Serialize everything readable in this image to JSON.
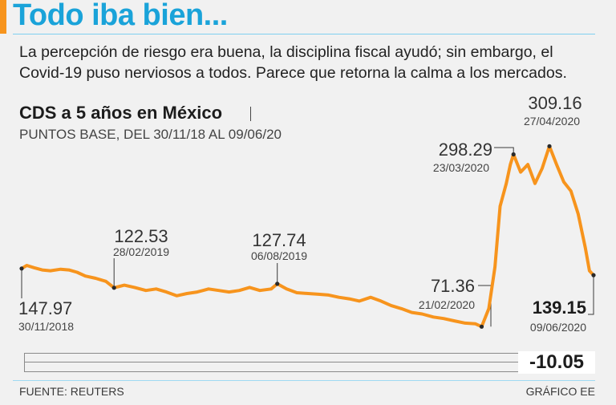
{
  "headline": "Todo iba bien...",
  "subtitle": "La percepción de riesgo era buena, la disciplina fiscal ayudó; sin embargo, el Covid-19 puso nerviosos a todos. Parece que retorna la calma a los mercados.",
  "colors": {
    "accent": "#f7941d",
    "headline": "#1aa3d9",
    "line": "#f7941d",
    "rule": "#7fcff0"
  },
  "change": "-10.05",
  "footer": {
    "source": "FUENTE: REUTERS",
    "credit": "GRÁFICO EE"
  },
  "chart_data": {
    "type": "line",
    "title": "CDS a 5 años en México",
    "subtitle": "PUNTOS BASE, DEL 30/11/18 AL 09/06/20",
    "x_range": [
      "2018-11-30",
      "2020-06-09"
    ],
    "y_range": [
      60,
      320
    ],
    "grid": false,
    "series": [
      {
        "values": [
          [
            "2018-11-30",
            147.97
          ],
          [
            "2018-12-05",
            152
          ],
          [
            "2018-12-12",
            149
          ],
          [
            "2018-12-20",
            146
          ],
          [
            "2018-12-28",
            145
          ],
          [
            "2019-01-07",
            147
          ],
          [
            "2019-01-15",
            146
          ],
          [
            "2019-01-23",
            143
          ],
          [
            "2019-01-31",
            138
          ],
          [
            "2019-02-10",
            135
          ],
          [
            "2019-02-20",
            131
          ],
          [
            "2019-02-28",
            122.53
          ],
          [
            "2019-03-10",
            126
          ],
          [
            "2019-03-20",
            123
          ],
          [
            "2019-03-31",
            119
          ],
          [
            "2019-04-10",
            121
          ],
          [
            "2019-04-20",
            117
          ],
          [
            "2019-04-30",
            112
          ],
          [
            "2019-05-10",
            115
          ],
          [
            "2019-05-20",
            117
          ],
          [
            "2019-05-31",
            121
          ],
          [
            "2019-06-10",
            119
          ],
          [
            "2019-06-20",
            117
          ],
          [
            "2019-06-30",
            119
          ],
          [
            "2019-07-10",
            123
          ],
          [
            "2019-07-20",
            119
          ],
          [
            "2019-07-31",
            121
          ],
          [
            "2019-08-06",
            127.74
          ],
          [
            "2019-08-15",
            121
          ],
          [
            "2019-08-25",
            116
          ],
          [
            "2019-09-05",
            115
          ],
          [
            "2019-09-15",
            114
          ],
          [
            "2019-09-25",
            113
          ],
          [
            "2019-10-05",
            110
          ],
          [
            "2019-10-15",
            108
          ],
          [
            "2019-10-25",
            105
          ],
          [
            "2019-11-05",
            110
          ],
          [
            "2019-11-15",
            105
          ],
          [
            "2019-11-25",
            99
          ],
          [
            "2019-12-05",
            95
          ],
          [
            "2019-12-15",
            90
          ],
          [
            "2019-12-25",
            88
          ],
          [
            "2020-01-05",
            84
          ],
          [
            "2020-01-15",
            82
          ],
          [
            "2020-01-25",
            79
          ],
          [
            "2020-02-05",
            76
          ],
          [
            "2020-02-15",
            75
          ],
          [
            "2020-02-21",
            71.36
          ],
          [
            "2020-02-28",
            95
          ],
          [
            "2020-03-05",
            150
          ],
          [
            "2020-03-10",
            230
          ],
          [
            "2020-03-16",
            260
          ],
          [
            "2020-03-20",
            285
          ],
          [
            "2020-03-23",
            298.29
          ],
          [
            "2020-03-30",
            275
          ],
          [
            "2020-04-06",
            285
          ],
          [
            "2020-04-13",
            260
          ],
          [
            "2020-04-20",
            280
          ],
          [
            "2020-04-27",
            309.16
          ],
          [
            "2020-05-04",
            285
          ],
          [
            "2020-05-11",
            262
          ],
          [
            "2020-05-18",
            250
          ],
          [
            "2020-05-25",
            220
          ],
          [
            "2020-06-01",
            175
          ],
          [
            "2020-06-05",
            145
          ],
          [
            "2020-06-09",
            139.15
          ]
        ]
      }
    ],
    "annotations": [
      {
        "date": "2018-11-30",
        "value": 147.97,
        "value_label": "147.97",
        "date_label": "30/11/2018"
      },
      {
        "date": "2019-02-28",
        "value": 122.53,
        "value_label": "122.53",
        "date_label": "28/02/2019"
      },
      {
        "date": "2019-08-06",
        "value": 127.74,
        "value_label": "127.74",
        "date_label": "06/08/2019"
      },
      {
        "date": "2020-02-21",
        "value": 71.36,
        "value_label": "71.36",
        "date_label": "21/02/2020"
      },
      {
        "date": "2020-03-23",
        "value": 298.29,
        "value_label": "298.29",
        "date_label": "23/03/2020"
      },
      {
        "date": "2020-04-27",
        "value": 309.16,
        "value_label": "309.16",
        "date_label": "27/04/2020"
      },
      {
        "date": "2020-06-09",
        "value": 139.15,
        "value_label": "139.15",
        "date_label": "09/06/2020"
      }
    ]
  }
}
